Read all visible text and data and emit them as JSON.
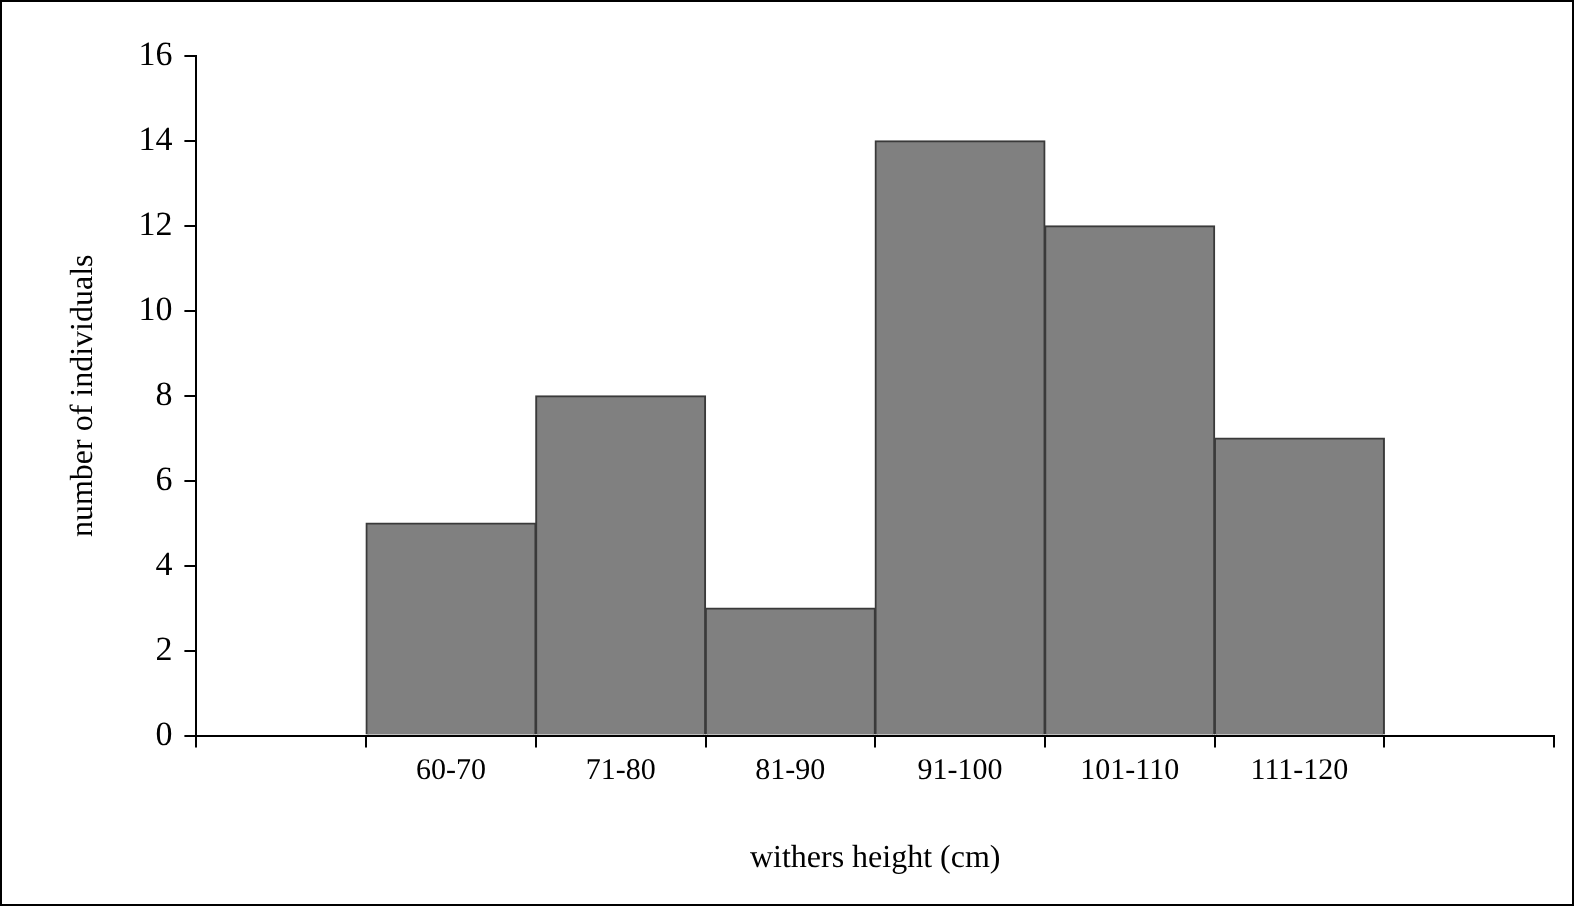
{
  "chart_data": {
    "type": "bar",
    "xlabel": "withers height (cm)",
    "ylabel": "number of individuals",
    "categories": [
      null,
      "60-70",
      "71-80",
      "81-90",
      "91-100",
      "101-110",
      "111-120",
      null
    ],
    "values": [
      null,
      5,
      8,
      3,
      14,
      12,
      7,
      null
    ],
    "color": "#808080",
    "ylim": [
      0,
      16
    ],
    "yticks": [
      0,
      2,
      4,
      6,
      8,
      10,
      12,
      14,
      16
    ],
    "grid": false,
    "legend": false
  }
}
